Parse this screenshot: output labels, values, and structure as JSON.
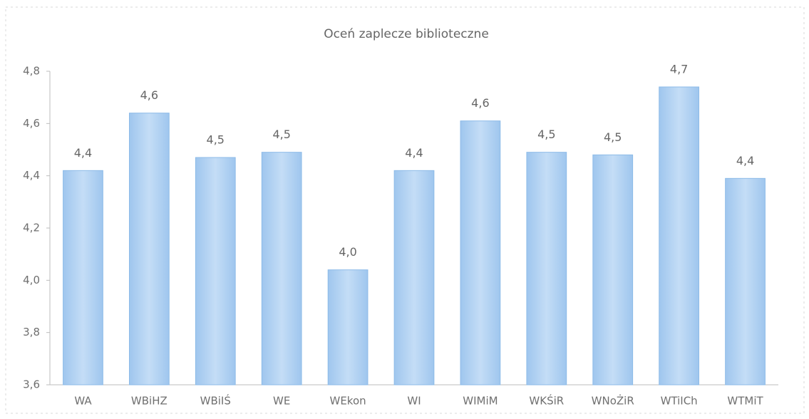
{
  "chart_data": {
    "type": "bar",
    "title": "Oceń zaplecze biblioteczne",
    "categories": [
      "WA",
      "WBiHZ",
      "WBiIŚ",
      "WE",
      "WEkon",
      "WI",
      "WIMiM",
      "WKŚiR",
      "WNoŻiR",
      "WTiICh",
      "WTMiT"
    ],
    "values": [
      4.42,
      4.64,
      4.47,
      4.49,
      4.04,
      4.42,
      4.61,
      4.49,
      4.48,
      4.74,
      4.39
    ],
    "value_labels": [
      "4,4",
      "4,6",
      "4,5",
      "4,5",
      "4,0",
      "4,4",
      "4,6",
      "4,5",
      "4,5",
      "4,7",
      "4,4"
    ],
    "color": "#a9cdf1",
    "ylim": [
      3.6,
      4.8
    ],
    "yticks": [
      {
        "value": 3.6,
        "label": "3,6"
      },
      {
        "value": 3.8,
        "label": "3,8"
      },
      {
        "value": 4.0,
        "label": "4,0"
      },
      {
        "value": 4.2,
        "label": "4,2"
      },
      {
        "value": 4.4,
        "label": "4,4"
      },
      {
        "value": 4.6,
        "label": "4,6"
      },
      {
        "value": 4.8,
        "label": "4,8"
      }
    ],
    "grid": false
  }
}
